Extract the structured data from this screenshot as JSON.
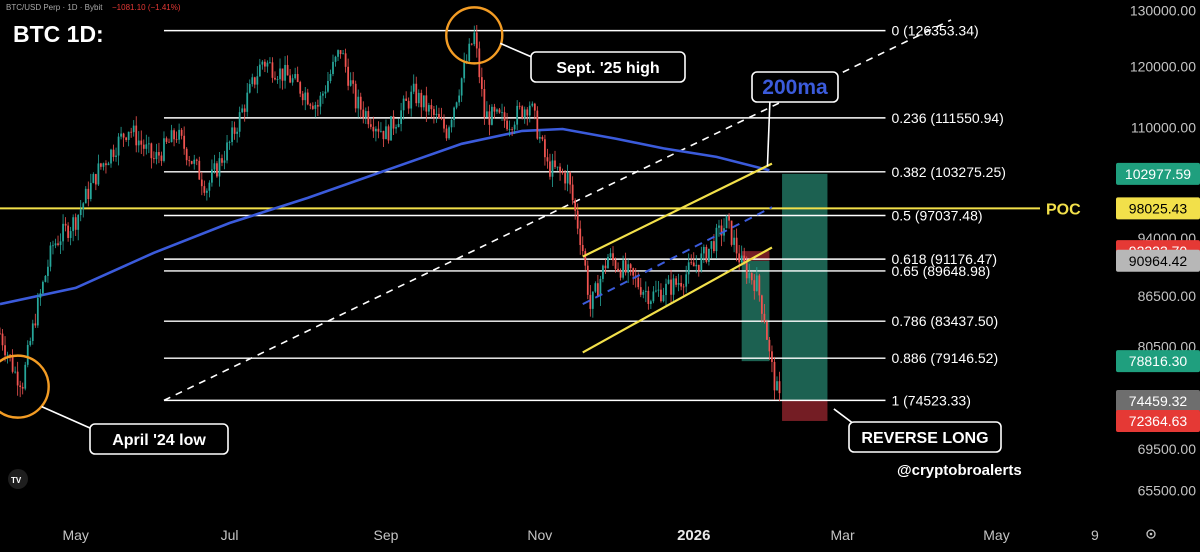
{
  "header": {
    "symbol_line": "BTC/USD Perp · 1D · Bybit",
    "change_text": "−1081.10 (−1.41%)"
  },
  "watermark": {
    "handle": "@cryptobroalerts",
    "logo_icon": "tradingview-logo-icon"
  },
  "chart_data": {
    "type": "line",
    "title": "BTC 1D:",
    "y_axis": {
      "ticks": [
        "130000.00",
        "120000.00",
        "110000.00",
        "102977.59",
        "98025.43",
        "94000.00",
        "92223.70",
        "90964.42",
        "86500.00",
        "80500.00",
        "78816.30",
        "74459.32",
        "72364.63",
        "69500.00",
        "65500.00"
      ],
      "scale": "log",
      "ylim": [
        63000,
        132000
      ]
    },
    "x_axis": {
      "ticks": [
        "May",
        "Jul",
        "Sep",
        "Nov",
        "2026",
        "Mar",
        "May",
        "9"
      ],
      "xlim": [
        "2025-04-01",
        "2026-06-15"
      ]
    },
    "fibonacci": {
      "start_date": "2025-06-05",
      "end_date": "2026-03-18",
      "levels": [
        {
          "ratio": "0",
          "price": 126353.34,
          "label": "0 (126353.34)"
        },
        {
          "ratio": "0.236",
          "price": 111550.94,
          "label": "0.236 (111550.94)"
        },
        {
          "ratio": "0.382",
          "price": 103275.25,
          "label": "0.382 (103275.25)"
        },
        {
          "ratio": "0.5",
          "price": 97037.48,
          "label": "0.5 (97037.48)"
        },
        {
          "ratio": "0.618",
          "price": 91176.47,
          "label": "0.618 (91176.47)"
        },
        {
          "ratio": "0.65",
          "price": 89648.98,
          "label": "0.65 (89648.98)"
        },
        {
          "ratio": "0.786",
          "price": 83437.5,
          "label": "0.786 (83437.50)"
        },
        {
          "ratio": "0.886",
          "price": 79146.52,
          "label": "0.886 (79146.52)"
        },
        {
          "ratio": "1",
          "price": 74523.33,
          "label": "1 (74523.33)"
        }
      ]
    },
    "poc": {
      "label": "POC",
      "price": 98025.43,
      "color": "#f2e04a"
    },
    "badges": [
      {
        "value": "102977.59",
        "price": 102977.59,
        "bg": "#1f9f7e",
        "fg": "#ffffff"
      },
      {
        "value": "98025.43",
        "price": 98025.43,
        "bg": "#f2e04a",
        "fg": "#000000"
      },
      {
        "value": "92223.70",
        "price": 92223.7,
        "bg": "#e53935",
        "fg": "#ffffff"
      },
      {
        "value": "90964.42",
        "price": 90964.42,
        "bg": "#b7b7b7",
        "fg": "#000000"
      },
      {
        "value": "78816.30",
        "price": 78816.3,
        "bg": "#1f9f7e",
        "fg": "#ffffff"
      },
      {
        "value": "74459.32",
        "price": 74459.32,
        "bg": "#6e6e6e",
        "fg": "#ffffff"
      },
      {
        "value": "72364.63",
        "price": 72364.63,
        "bg": "#e53935",
        "fg": "#ffffff"
      }
    ],
    "ma200": {
      "label": "200ma",
      "color": "#3b5bdb",
      "points": [
        [
          "2025-04-01",
          85500
        ],
        [
          "2025-05-01",
          87500
        ],
        [
          "2025-06-01",
          92000
        ],
        [
          "2025-07-01",
          96000
        ],
        [
          "2025-08-01",
          99500
        ],
        [
          "2025-09-01",
          103500
        ],
        [
          "2025-10-01",
          107500
        ],
        [
          "2025-10-25",
          109500
        ],
        [
          "2025-11-10",
          109800
        ],
        [
          "2025-12-01",
          108300
        ],
        [
          "2025-12-20",
          106800
        ],
        [
          "2026-01-10",
          105500
        ],
        [
          "2026-01-31",
          103500
        ]
      ]
    },
    "diagonal": {
      "color": "#ffffff",
      "dashed": true,
      "start": [
        "2025-06-05",
        74523.33
      ],
      "end": [
        "2026-04-13",
        128300
      ]
    },
    "channel": {
      "color": "#f2e04a",
      "upper": [
        [
          "2025-11-18",
          91500
        ],
        [
          "2026-02-01",
          104500
        ]
      ],
      "lower": [
        [
          "2025-11-18",
          79800
        ],
        [
          "2026-02-01",
          92700
        ]
      ],
      "mid": {
        "color": "#3b5bdb",
        "dashed": true,
        "start": [
          "2025-11-18",
          85500
        ],
        "end": [
          "2026-02-01",
          98200
        ]
      }
    },
    "position_long": {
      "entry": 74459.32,
      "stop": 72364.63,
      "target": 102977.59,
      "start_date": "2026-02-05",
      "end_date": "2026-02-23",
      "profit_color": "#1f6b5a",
      "loss_color": "#7a1f26"
    },
    "position_short": {
      "entry": 90964.42,
      "stop": 92223.7,
      "target": 78816.3,
      "start_date": "2026-01-20",
      "end_date": "2026-01-31",
      "profit_color": "#1f6b5a",
      "loss_color": "#7a1f26"
    },
    "price_candles": [
      [
        "2025-04-01",
        82000
      ],
      [
        "2025-04-07",
        77500
      ],
      [
        "2025-04-10",
        76500
      ],
      [
        "2025-04-15",
        84000
      ],
      [
        "2025-04-22",
        93000
      ],
      [
        "2025-05-01",
        96500
      ],
      [
        "2025-05-10",
        103500
      ],
      [
        "2025-05-22",
        110000
      ],
      [
        "2025-06-01",
        105000
      ],
      [
        "2025-06-10",
        109000
      ],
      [
        "2025-06-22",
        101000
      ],
      [
        "2025-07-01",
        107500
      ],
      [
        "2025-07-14",
        121000
      ],
      [
        "2025-07-25",
        118000
      ],
      [
        "2025-08-05",
        113500
      ],
      [
        "2025-08-14",
        123000
      ],
      [
        "2025-08-20",
        114000
      ],
      [
        "2025-09-01",
        109000
      ],
      [
        "2025-09-12",
        115500
      ],
      [
        "2025-09-25",
        109500
      ],
      [
        "2025-10-01",
        118000
      ],
      [
        "2025-10-06",
        125500
      ],
      [
        "2025-10-10",
        112000
      ],
      [
        "2025-10-20",
        111000
      ],
      [
        "2025-10-28",
        114000
      ],
      [
        "2025-11-04",
        104000
      ],
      [
        "2025-11-12",
        102500
      ],
      [
        "2025-11-18",
        92500
      ],
      [
        "2025-11-21",
        85000
      ],
      [
        "2025-11-28",
        91500
      ],
      [
        "2025-12-05",
        89500
      ],
      [
        "2025-12-15",
        86500
      ],
      [
        "2025-12-25",
        88000
      ],
      [
        "2026-01-05",
        91500
      ],
      [
        "2026-01-14",
        96000
      ],
      [
        "2026-01-20",
        90500
      ],
      [
        "2026-01-26",
        88000
      ],
      [
        "2026-01-29",
        84000
      ],
      [
        "2026-01-31",
        79500
      ],
      [
        "2026-02-02",
        76500
      ],
      [
        "2026-02-04",
        74500
      ]
    ],
    "candle_colors": {
      "up": "#26a69a",
      "down": "#ef5350"
    },
    "annotations": [
      {
        "text": "Sept. '25 high",
        "circle_date": "2025-10-06",
        "circle_price": 125500
      },
      {
        "text": "April '24 low",
        "circle_date": "2025-04-08",
        "circle_price": 76000
      },
      {
        "text": "REVERSE LONG",
        "date": "2026-02-20",
        "price": 72364.63
      }
    ]
  }
}
